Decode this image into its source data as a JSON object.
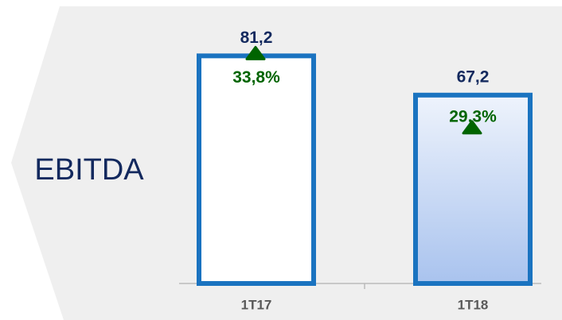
{
  "chart_data": {
    "type": "bar",
    "title": "EBITDA",
    "categories": [
      "1T17",
      "1T18"
    ],
    "values": [
      81.2,
      67.2
    ],
    "value_labels": [
      "81,2",
      "67,2"
    ],
    "annotations": [
      "33,8%",
      "29,3%"
    ],
    "colors": [
      "#ffffff",
      "#a9c3ee"
    ],
    "edge_color": "#1a73c0",
    "annotation_color": "#006400"
  }
}
